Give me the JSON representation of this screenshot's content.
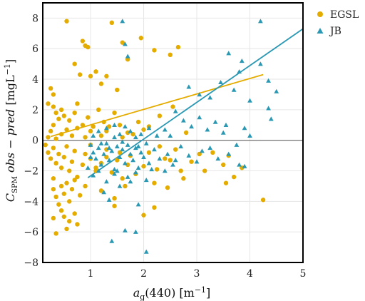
{
  "chart_data": {
    "type": "scatter",
    "xlabel": "a_g(440) [m^-1]",
    "ylabel": "C_SPM obs − pred [mgL^-1]",
    "xlim": [
      0.1,
      5.0
    ],
    "ylim": [
      -8,
      9
    ],
    "xticks": [
      1,
      2,
      3,
      4,
      5
    ],
    "yticks": [
      -8,
      -6,
      -4,
      -2,
      0,
      2,
      4,
      6,
      8
    ],
    "grid": true,
    "zero_line": 0,
    "legend_position": "outside-right-top",
    "series": [
      {
        "name": "EGSL",
        "marker": "circle",
        "color": "#e5ac00",
        "points": [
          [
            0.55,
            7.8
          ],
          [
            0.85,
            6.5
          ],
          [
            0.9,
            6.2
          ],
          [
            0.95,
            6.1
          ],
          [
            1.4,
            7.7
          ],
          [
            1.6,
            6.4
          ],
          [
            1.95,
            6.7
          ],
          [
            2.2,
            5.9
          ],
          [
            2.5,
            5.6
          ],
          [
            2.65,
            6.1
          ],
          [
            0.7,
            5.0
          ],
          [
            0.8,
            4.3
          ],
          [
            1.0,
            4.2
          ],
          [
            1.1,
            4.5
          ],
          [
            1.2,
            3.7
          ],
          [
            1.3,
            4.2
          ],
          [
            1.5,
            3.3
          ],
          [
            1.7,
            5.3
          ],
          [
            0.25,
            3.4
          ],
          [
            0.3,
            3.0
          ],
          [
            0.2,
            2.4
          ],
          [
            0.3,
            2.2
          ],
          [
            0.35,
            1.8
          ],
          [
            0.4,
            1.4
          ],
          [
            0.45,
            2.0
          ],
          [
            0.5,
            1.6
          ],
          [
            0.6,
            1.3
          ],
          [
            0.7,
            1.8
          ],
          [
            0.75,
            2.4
          ],
          [
            0.85,
            1.0
          ],
          [
            0.95,
            1.5
          ],
          [
            1.05,
            0.9
          ],
          [
            1.15,
            2.0
          ],
          [
            1.25,
            1.2
          ],
          [
            1.3,
            0.6
          ],
          [
            1.45,
            1.8
          ],
          [
            1.55,
            1.0
          ],
          [
            1.7,
            0.5
          ],
          [
            1.9,
            1.2
          ],
          [
            2.1,
            0.9
          ],
          [
            2.3,
            1.6
          ],
          [
            2.55,
            2.2
          ],
          [
            2.8,
            0.5
          ],
          [
            0.2,
            0.2
          ],
          [
            0.25,
            0.6
          ],
          [
            0.3,
            1.0
          ],
          [
            0.35,
            0.1
          ],
          [
            0.45,
            0.4
          ],
          [
            0.55,
            0.7
          ],
          [
            0.65,
            0.3
          ],
          [
            0.75,
            0.8
          ],
          [
            0.9,
            0.2
          ],
          [
            1.0,
            0.6
          ],
          [
            1.2,
            0.3
          ],
          [
            1.35,
            0.9
          ],
          [
            1.6,
            0.2
          ],
          [
            1.8,
            0.4
          ],
          [
            2.0,
            0.7
          ],
          [
            0.15,
            -0.3
          ],
          [
            0.2,
            -0.8
          ],
          [
            0.25,
            -1.2
          ],
          [
            0.3,
            -0.5
          ],
          [
            0.35,
            -1.5
          ],
          [
            0.4,
            -0.9
          ],
          [
            0.45,
            -1.8
          ],
          [
            0.5,
            -1.1
          ],
          [
            0.55,
            -0.4
          ],
          [
            0.6,
            -2.0
          ],
          [
            0.65,
            -1.4
          ],
          [
            0.7,
            -0.7
          ],
          [
            0.75,
            -2.4
          ],
          [
            0.85,
            -1.6
          ],
          [
            0.9,
            -0.9
          ],
          [
            1.0,
            -1.2
          ],
          [
            1.1,
            -2.0
          ],
          [
            1.2,
            -1.5
          ],
          [
            1.3,
            -0.6
          ],
          [
            1.4,
            -2.1
          ],
          [
            1.5,
            -1.3
          ],
          [
            1.6,
            -2.5
          ],
          [
            1.75,
            -1.0
          ],
          [
            1.85,
            -2.2
          ],
          [
            2.0,
            -1.7
          ],
          [
            2.1,
            -0.8
          ],
          [
            2.25,
            -1.9
          ],
          [
            2.4,
            -1.2
          ],
          [
            2.6,
            -0.6
          ],
          [
            2.75,
            -2.5
          ],
          [
            2.9,
            -1.4
          ],
          [
            3.05,
            -0.9
          ],
          [
            3.15,
            -2.0
          ],
          [
            3.5,
            -1.6
          ],
          [
            3.7,
            -2.4
          ],
          [
            3.85,
            -1.8
          ],
          [
            2.2,
            -2.8
          ],
          [
            2.45,
            -3.1
          ],
          [
            1.2,
            -3.3
          ],
          [
            1.45,
            -3.8
          ],
          [
            1.65,
            -3.0
          ],
          [
            0.3,
            -2.5
          ],
          [
            0.3,
            -3.2
          ],
          [
            0.35,
            -3.7
          ],
          [
            0.4,
            -4.2
          ],
          [
            0.45,
            -3.0
          ],
          [
            0.5,
            -3.5
          ],
          [
            0.55,
            -2.8
          ],
          [
            0.6,
            -4.0
          ],
          [
            0.65,
            -3.2
          ],
          [
            0.7,
            -2.6
          ],
          [
            0.8,
            -3.6
          ],
          [
            0.9,
            -3.0
          ],
          [
            0.3,
            -5.1
          ],
          [
            0.35,
            -6.1
          ],
          [
            0.45,
            -4.6
          ],
          [
            0.5,
            -5.0
          ],
          [
            0.55,
            -5.8
          ],
          [
            0.6,
            -5.3
          ],
          [
            0.7,
            -4.8
          ],
          [
            0.75,
            -5.5
          ],
          [
            1.45,
            -4.3
          ],
          [
            2.0,
            -4.9
          ],
          [
            2.2,
            -4.4
          ],
          [
            3.55,
            -2.8
          ],
          [
            4.25,
            -3.9
          ],
          [
            1.0,
            -0.3
          ],
          [
            1.1,
            -1.8
          ],
          [
            1.3,
            -1.1
          ],
          [
            1.55,
            -0.8
          ],
          [
            1.7,
            -1.6
          ],
          [
            2.3,
            -0.4
          ],
          [
            2.5,
            -1.3
          ],
          [
            2.7,
            -2.0
          ],
          [
            3.3,
            -0.8
          ],
          [
            3.6,
            -1.0
          ]
        ]
      },
      {
        "name": "JB",
        "marker": "triangle",
        "color": "#2a98b3",
        "points": [
          [
            1.6,
            7.8
          ],
          [
            4.2,
            7.8
          ],
          [
            1.65,
            6.3
          ],
          [
            1.7,
            5.5
          ],
          [
            3.85,
            5.2
          ],
          [
            4.2,
            5.0
          ],
          [
            3.6,
            5.7
          ],
          [
            3.8,
            4.5
          ],
          [
            4.35,
            3.9
          ],
          [
            4.5,
            3.2
          ],
          [
            2.85,
            3.5
          ],
          [
            3.05,
            3.0
          ],
          [
            3.25,
            2.8
          ],
          [
            3.45,
            3.8
          ],
          [
            3.7,
            3.3
          ],
          [
            4.0,
            2.6
          ],
          [
            4.35,
            2.1
          ],
          [
            4.4,
            1.4
          ],
          [
            2.6,
            1.9
          ],
          [
            2.75,
            1.3
          ],
          [
            2.9,
            0.9
          ],
          [
            3.05,
            1.5
          ],
          [
            3.2,
            0.7
          ],
          [
            3.35,
            1.2
          ],
          [
            3.5,
            0.5
          ],
          [
            3.55,
            1.0
          ],
          [
            3.9,
            0.8
          ],
          [
            4.0,
            0.3
          ],
          [
            1.95,
            0.4
          ],
          [
            2.1,
            0.8
          ],
          [
            2.25,
            0.3
          ],
          [
            2.4,
            0.7
          ],
          [
            1.05,
            0.3
          ],
          [
            1.15,
            0.6
          ],
          [
            1.3,
            0.8
          ],
          [
            1.45,
            1.0
          ],
          [
            1.55,
            0.4
          ],
          [
            1.65,
            0.9
          ],
          [
            1.75,
            0.6
          ],
          [
            1.85,
            0.2
          ],
          [
            1.0,
            -0.3
          ],
          [
            1.05,
            -0.8
          ],
          [
            1.1,
            -1.2
          ],
          [
            1.15,
            -0.5
          ],
          [
            1.2,
            -1.6
          ],
          [
            1.25,
            -0.9
          ],
          [
            1.3,
            -0.2
          ],
          [
            1.35,
            -1.3
          ],
          [
            1.4,
            -0.7
          ],
          [
            1.45,
            -1.9
          ],
          [
            1.5,
            -0.4
          ],
          [
            1.55,
            -1.1
          ],
          [
            1.6,
            -0.6
          ],
          [
            1.65,
            -1.5
          ],
          [
            1.7,
            -0.3
          ],
          [
            1.75,
            -0.9
          ],
          [
            1.8,
            -1.3
          ],
          [
            1.85,
            -0.5
          ],
          [
            1.9,
            -1.8
          ],
          [
            1.95,
            -0.8
          ],
          [
            2.0,
            -1.1
          ],
          [
            2.05,
            -0.2
          ],
          [
            2.1,
            -1.5
          ],
          [
            2.2,
            -0.6
          ],
          [
            2.3,
            -1.2
          ],
          [
            2.45,
            -0.9
          ],
          [
            2.55,
            -1.6
          ],
          [
            2.7,
            -0.4
          ],
          [
            2.85,
            -1.0
          ],
          [
            3.0,
            -1.4
          ],
          [
            3.1,
            -0.7
          ],
          [
            3.25,
            -0.5
          ],
          [
            3.4,
            -1.2
          ],
          [
            3.6,
            -0.9
          ],
          [
            3.75,
            -0.3
          ],
          [
            3.8,
            -1.6
          ],
          [
            0.95,
            -1.8
          ],
          [
            1.05,
            -2.3
          ],
          [
            1.15,
            -2.0
          ],
          [
            1.3,
            -2.7
          ],
          [
            1.45,
            -2.2
          ],
          [
            1.55,
            -3.0
          ],
          [
            1.7,
            -2.4
          ],
          [
            1.85,
            -2.1
          ],
          [
            2.05,
            -2.6
          ],
          [
            2.4,
            -2.0
          ],
          [
            1.25,
            -3.4
          ],
          [
            1.35,
            -3.9
          ],
          [
            1.9,
            -4.2
          ],
          [
            1.5,
            -2.0
          ],
          [
            1.4,
            -6.6
          ],
          [
            1.65,
            -5.9
          ],
          [
            1.85,
            -6.0
          ],
          [
            2.05,
            -7.3
          ],
          [
            1.0,
            -1.1
          ],
          [
            1.2,
            -0.2
          ],
          [
            1.6,
            -0.1
          ],
          [
            1.75,
            -2.7
          ],
          [
            2.15,
            -1.9
          ],
          [
            2.6,
            -1.3
          ],
          [
            1.35,
            -0.5
          ],
          [
            1.45,
            0.2
          ],
          [
            1.9,
            -0.4
          ],
          [
            2.5,
            0.3
          ],
          [
            3.9,
            -1.7
          ]
        ]
      }
    ],
    "fit_lines": [
      {
        "series": "EGSL",
        "color": "#e5ac00",
        "x": [
          0.25,
          4.25
        ],
        "y": [
          0.25,
          4.3
        ]
      },
      {
        "series": "JB",
        "color": "#2a98b3",
        "x": [
          0.95,
          5.0
        ],
        "y": [
          -2.45,
          7.3
        ]
      }
    ]
  }
}
